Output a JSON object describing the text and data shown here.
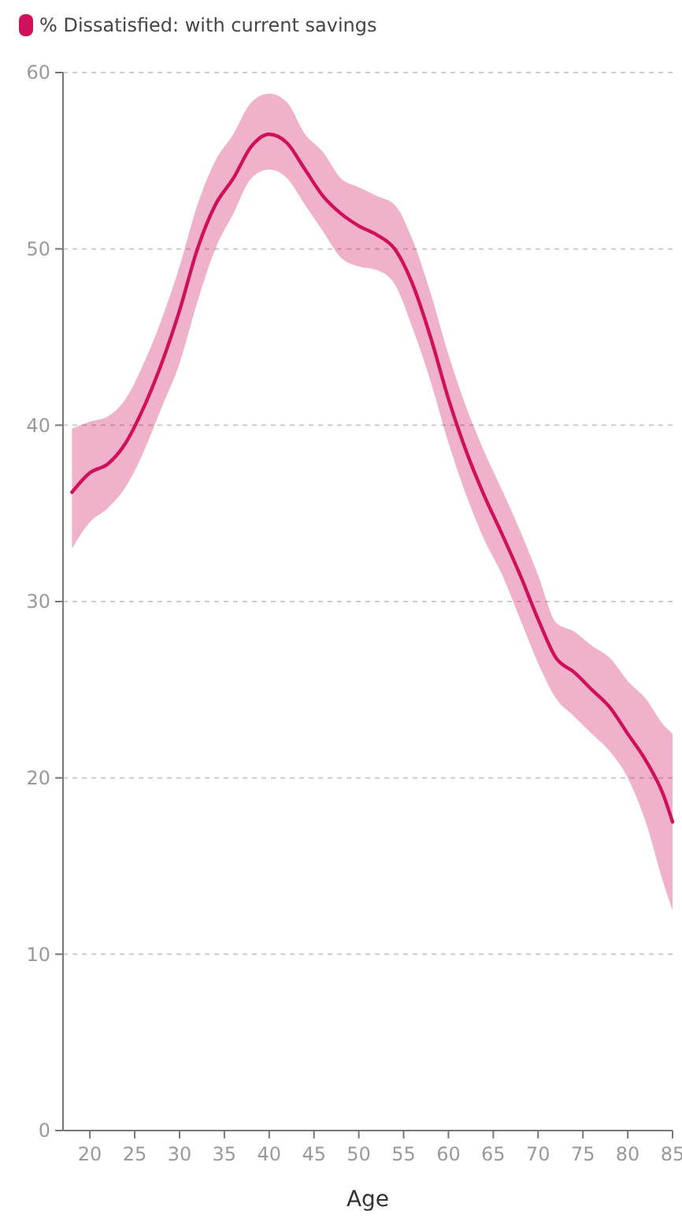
{
  "chart_data": {
    "type": "line",
    "xlabel": "Age",
    "x": [
      18,
      20,
      22,
      24,
      26,
      28,
      30,
      32,
      34,
      36,
      38,
      40,
      42,
      44,
      46,
      48,
      50,
      52,
      54,
      56,
      58,
      60,
      62,
      64,
      66,
      68,
      70,
      72,
      74,
      76,
      78,
      80,
      82,
      84,
      85
    ],
    "series": [
      {
        "name": "% Dissatisfied: with current savings",
        "color": "#d0105a",
        "values": [
          36.2,
          37.3,
          37.8,
          39,
          41,
          43.5,
          46.5,
          50,
          52.5,
          54,
          55.8,
          56.5,
          56,
          54.5,
          53,
          52,
          51.3,
          50.8,
          50,
          48,
          45,
          41.5,
          38.5,
          36,
          33.8,
          31.5,
          29,
          26.8,
          26,
          25,
          24,
          22.5,
          21,
          19,
          17.5
        ],
        "lower": [
          33,
          34.5,
          35.3,
          36.5,
          38.5,
          41,
          43.5,
          47,
          50,
          52,
          54,
          54.5,
          54,
          52.5,
          51,
          49.5,
          49,
          48.8,
          48,
          45.5,
          42.5,
          39,
          36,
          33.5,
          31.5,
          29,
          26.5,
          24.5,
          23.5,
          22.5,
          21.5,
          20,
          17.5,
          14,
          12.5
        ],
        "upper": [
          39.8,
          40.2,
          40.5,
          41.5,
          43.5,
          46,
          49,
          52.5,
          55,
          56.5,
          58.3,
          58.8,
          58.3,
          56.5,
          55.5,
          54,
          53.5,
          53,
          52.5,
          50.5,
          47.5,
          44,
          41,
          38.5,
          36.3,
          34,
          31.5,
          28.8,
          28.3,
          27.5,
          26.8,
          25.5,
          24.5,
          23,
          22.5
        ]
      }
    ],
    "xlim": [
      17,
      85
    ],
    "xticks": [
      20,
      25,
      30,
      35,
      40,
      45,
      50,
      55,
      60,
      65,
      70,
      75,
      80,
      85
    ],
    "ylim": [
      0,
      60
    ],
    "yticks": [
      0,
      10,
      20,
      30,
      40,
      50,
      60
    ],
    "grid": "y",
    "legend": "top left",
    "marker": "none",
    "line_style": "solid"
  }
}
